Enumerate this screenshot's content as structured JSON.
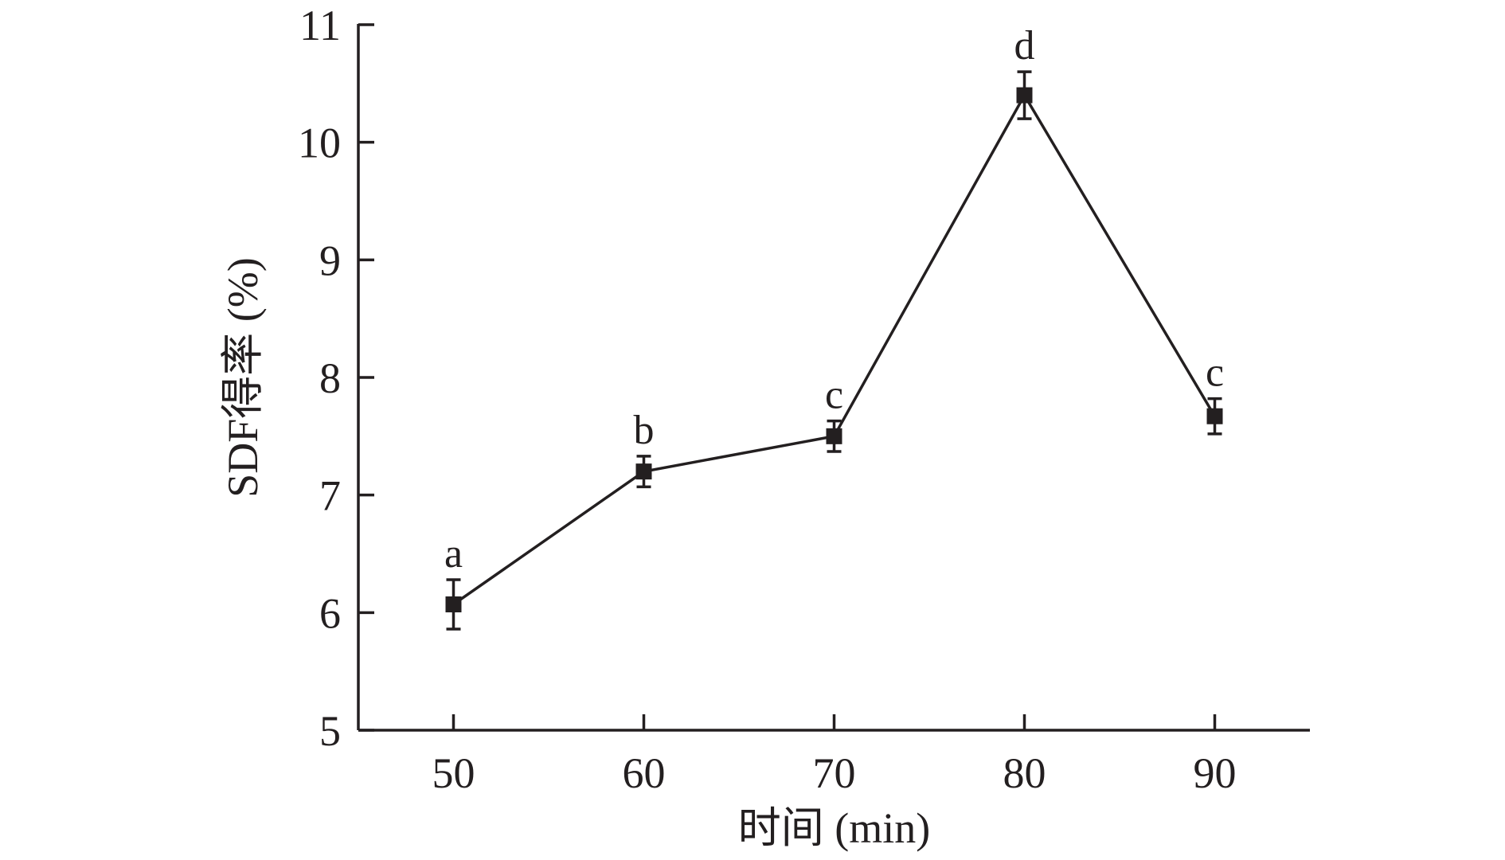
{
  "chart_data": {
    "type": "line",
    "xlabel": "时间 (min)",
    "ylabel": "SDF得率 (%)",
    "xlim": [
      45,
      95
    ],
    "ylim": [
      5,
      11
    ],
    "x_ticks": [
      "50",
      "60",
      "70",
      "80",
      "90"
    ],
    "y_ticks": [
      "5",
      "6",
      "7",
      "8",
      "9",
      "10",
      "11"
    ],
    "x": [
      50,
      60,
      70,
      80,
      90
    ],
    "series": [
      {
        "values": [
          6.07,
          7.2,
          7.5,
          10.4,
          7.67
        ],
        "error": [
          0.21,
          0.13,
          0.13,
          0.2,
          0.15
        ],
        "labels": [
          "a",
          "b",
          "c",
          "d",
          "c"
        ]
      }
    ],
    "grid": false,
    "colors": {
      "ink": "#231f20"
    }
  }
}
